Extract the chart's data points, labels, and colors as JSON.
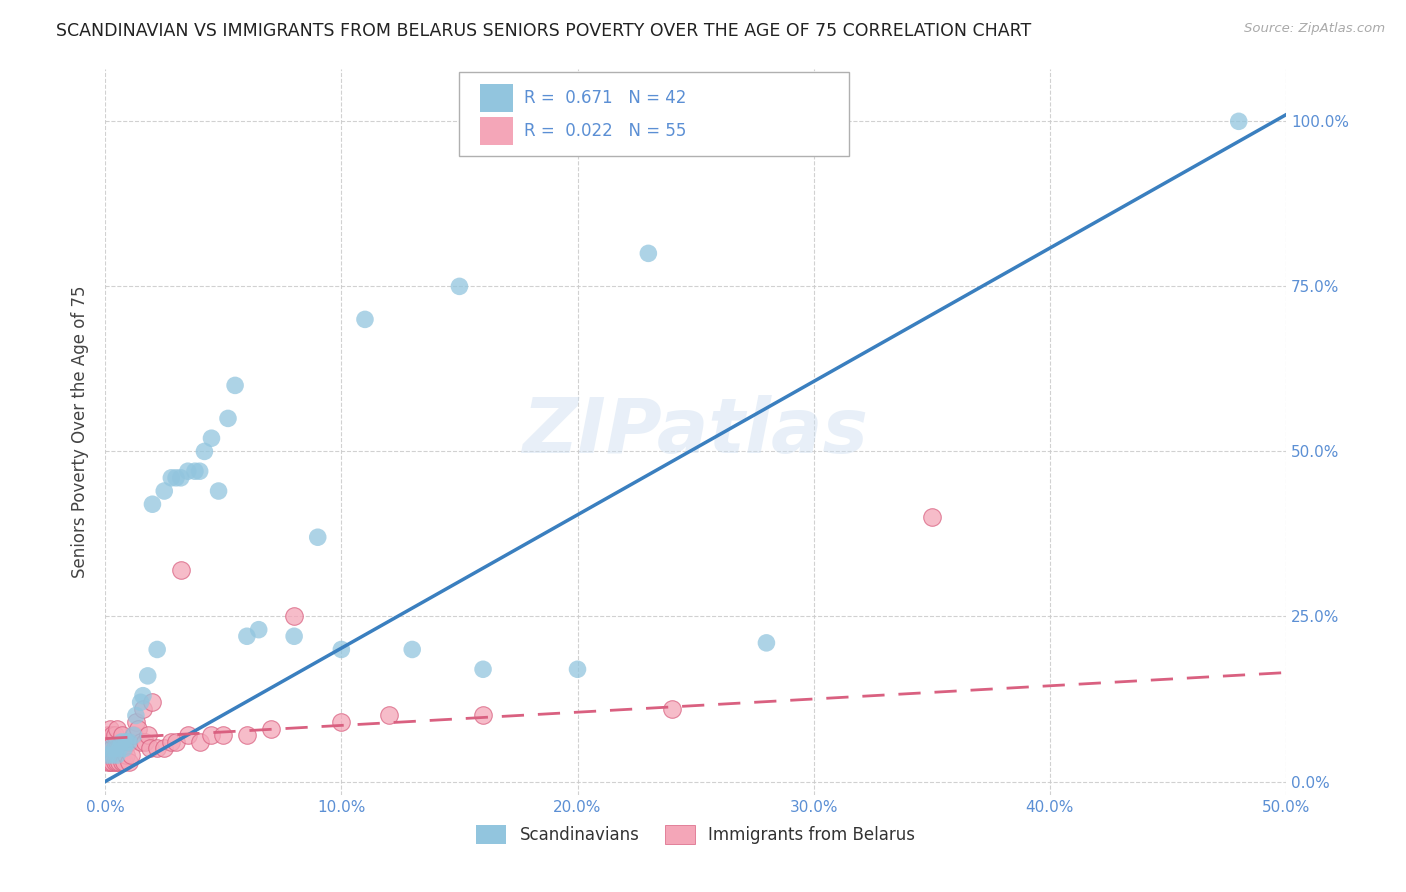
{
  "title": "SCANDINAVIAN VS IMMIGRANTS FROM BELARUS SENIORS POVERTY OVER THE AGE OF 75 CORRELATION CHART",
  "source": "Source: ZipAtlas.com",
  "ylabel": "Seniors Poverty Over the Age of 75",
  "xlim": [
    0.0,
    0.5
  ],
  "ylim": [
    -0.02,
    1.08
  ],
  "legend_r1": "R =  0.671",
  "legend_n1": "N = 42",
  "legend_r2": "R =  0.022",
  "legend_n2": "N = 55",
  "blue_color": "#92C5DE",
  "pink_color": "#F4A6B8",
  "blue_line_color": "#3A7FBF",
  "pink_line_color": "#D96080",
  "tick_color": "#5B8FD4",
  "watermark": "ZIPatlas",
  "scandinavians_x": [
    0.001,
    0.002,
    0.003,
    0.004,
    0.005,
    0.006,
    0.007,
    0.008,
    0.009,
    0.01,
    0.012,
    0.013,
    0.015,
    0.016,
    0.018,
    0.02,
    0.022,
    0.025,
    0.028,
    0.03,
    0.032,
    0.035,
    0.038,
    0.04,
    0.042,
    0.045,
    0.048,
    0.052,
    0.055,
    0.06,
    0.065,
    0.08,
    0.09,
    0.1,
    0.11,
    0.13,
    0.15,
    0.16,
    0.2,
    0.23,
    0.28,
    0.48
  ],
  "scandinavians_y": [
    0.04,
    0.05,
    0.04,
    0.05,
    0.04,
    0.05,
    0.06,
    0.05,
    0.06,
    0.06,
    0.07,
    0.1,
    0.12,
    0.13,
    0.16,
    0.42,
    0.2,
    0.44,
    0.46,
    0.46,
    0.46,
    0.47,
    0.47,
    0.47,
    0.5,
    0.52,
    0.44,
    0.55,
    0.6,
    0.22,
    0.23,
    0.22,
    0.37,
    0.2,
    0.7,
    0.2,
    0.75,
    0.17,
    0.17,
    0.8,
    0.21,
    1.0
  ],
  "belarus_x": [
    0.0,
    0.0,
    0.001,
    0.001,
    0.001,
    0.002,
    0.002,
    0.002,
    0.002,
    0.003,
    0.003,
    0.003,
    0.004,
    0.004,
    0.004,
    0.005,
    0.005,
    0.005,
    0.006,
    0.006,
    0.007,
    0.007,
    0.007,
    0.008,
    0.008,
    0.009,
    0.01,
    0.01,
    0.011,
    0.012,
    0.013,
    0.014,
    0.015,
    0.016,
    0.017,
    0.018,
    0.019,
    0.02,
    0.022,
    0.025,
    0.028,
    0.03,
    0.032,
    0.035,
    0.04,
    0.045,
    0.05,
    0.06,
    0.07,
    0.08,
    0.1,
    0.12,
    0.16,
    0.24,
    0.35
  ],
  "belarus_y": [
    0.04,
    0.06,
    0.03,
    0.05,
    0.07,
    0.03,
    0.04,
    0.06,
    0.08,
    0.03,
    0.05,
    0.07,
    0.03,
    0.05,
    0.07,
    0.03,
    0.05,
    0.08,
    0.03,
    0.05,
    0.03,
    0.05,
    0.07,
    0.03,
    0.05,
    0.04,
    0.03,
    0.06,
    0.04,
    0.07,
    0.09,
    0.08,
    0.06,
    0.11,
    0.06,
    0.07,
    0.05,
    0.12,
    0.05,
    0.05,
    0.06,
    0.06,
    0.32,
    0.07,
    0.06,
    0.07,
    0.07,
    0.07,
    0.08,
    0.25,
    0.09,
    0.1,
    0.1,
    0.11,
    0.4
  ],
  "blue_trend": [
    0.0,
    0.5,
    0.0,
    1.01
  ],
  "pink_trend_start_y": 0.065,
  "pink_trend_end_y": 0.165
}
